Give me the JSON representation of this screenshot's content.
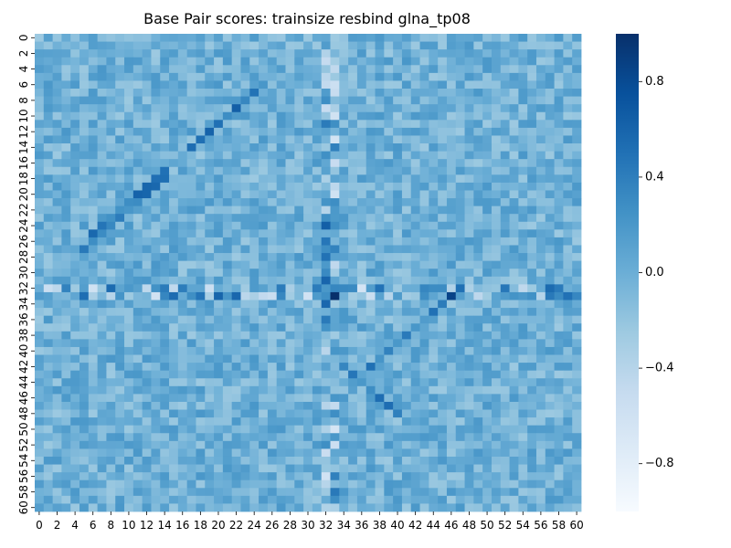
{
  "chart_data": {
    "type": "heatmap",
    "title": "Base Pair scores: trainsize resbind glna_tp08",
    "xlabel": "",
    "ylabel": "",
    "n_rows": 61,
    "n_cols": 61,
    "x_tick_labels": [
      "0",
      "2",
      "4",
      "6",
      "8",
      "10",
      "12",
      "14",
      "16",
      "18",
      "20",
      "22",
      "24",
      "26",
      "28",
      "30",
      "32",
      "34",
      "36",
      "38",
      "40",
      "42",
      "44",
      "46",
      "48",
      "50",
      "52",
      "54",
      "56",
      "58",
      "60"
    ],
    "y_tick_labels": [
      "0",
      "2",
      "4",
      "6",
      "8",
      "10",
      "12",
      "14",
      "16",
      "18",
      "20",
      "22",
      "24",
      "26",
      "28",
      "30",
      "32",
      "34",
      "36",
      "38",
      "40",
      "42",
      "44",
      "46",
      "48",
      "50",
      "52",
      "54",
      "56",
      "58",
      "60"
    ],
    "colorbar": {
      "vmin": -1.0,
      "vmax": 1.0,
      "ticks": [
        0.8,
        0.4,
        0.0,
        -0.4,
        -0.8
      ],
      "tick_labels": [
        "0.8",
        "0.4",
        "0.0",
        "−0.4",
        "−0.8"
      ],
      "colormap": "Blues",
      "color_low": "#f7fbff",
      "color_high": "#08306b"
    },
    "grid": false,
    "note_values": "Cell values are a visual approximation of the depicted score matrix (mostly near 0, with diagonal stripes and strong rows/columns around index 32-34)."
  }
}
